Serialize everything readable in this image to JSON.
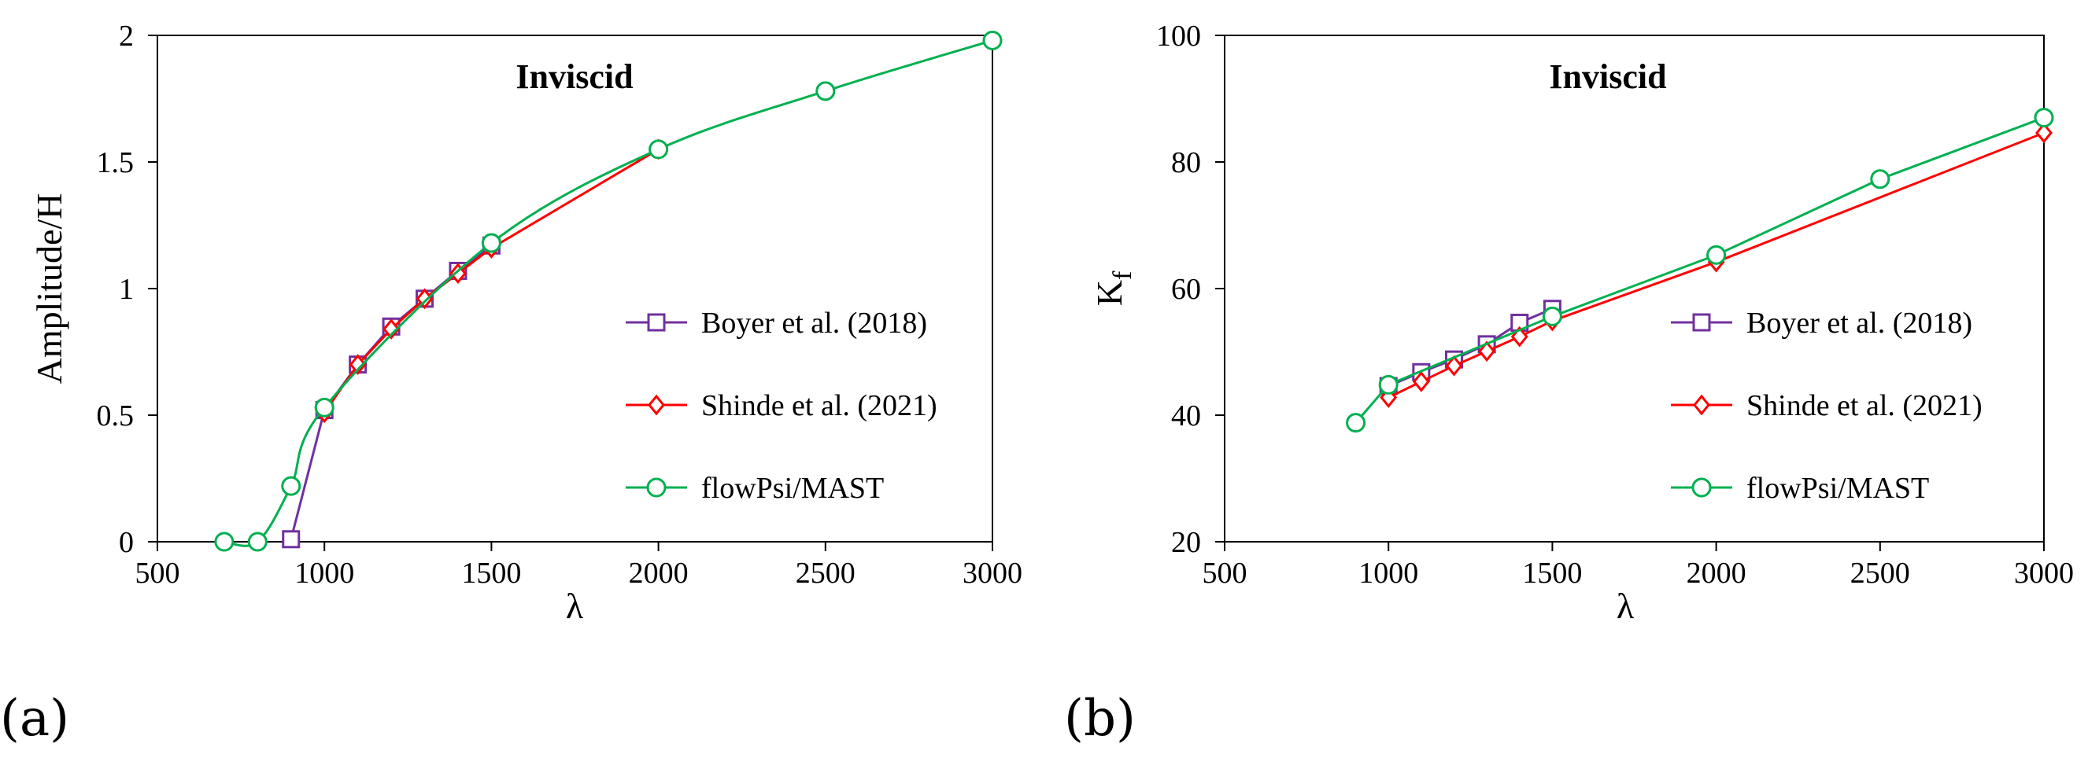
{
  "colors": {
    "boyer": "#7030A0",
    "shinde": "#FF0000",
    "flowpsi": "#00B050"
  },
  "chart_data": [
    {
      "type": "line",
      "panel_label": "(a)",
      "title": "Inviscid",
      "xlabel": "λ",
      "ylabel": "Amplitude/H",
      "xlim": [
        500,
        3000
      ],
      "ylim": [
        0,
        2
      ],
      "xticks": [
        "500",
        "1000",
        "1500",
        "2000",
        "2500",
        "3000"
      ],
      "yticks": [
        "0",
        "0.5",
        "1",
        "1.5",
        "2"
      ],
      "legend_position": "center-right",
      "series": [
        {
          "name": "Boyer et al. (2018)",
          "marker": "square",
          "curve": "linear",
          "x": [
            900,
            1000,
            1100,
            1200,
            1300,
            1400,
            1500
          ],
          "y": [
            0.01,
            0.52,
            0.7,
            0.85,
            0.96,
            1.07,
            1.17
          ]
        },
        {
          "name": "Shinde et al. (2021)",
          "marker": "diamond",
          "curve": "linear",
          "x": [
            1000,
            1100,
            1200,
            1300,
            1400,
            1500,
            2000
          ],
          "y": [
            0.51,
            0.7,
            0.84,
            0.96,
            1.06,
            1.16,
            1.55
          ]
        },
        {
          "name": "flowPsi/MAST",
          "marker": "circle",
          "curve": "smooth",
          "x": [
            700,
            800,
            900,
            1000,
            1500,
            2000,
            2500,
            3000
          ],
          "y": [
            0.0,
            0.0,
            0.22,
            0.53,
            1.18,
            1.55,
            1.78,
            1.98
          ]
        }
      ]
    },
    {
      "type": "line",
      "panel_label": "(b)",
      "title": "Inviscid",
      "xlabel": "λ",
      "ylabel_main": "K",
      "ylabel_sub": "f",
      "xlim": [
        500,
        3000
      ],
      "ylim": [
        20,
        100
      ],
      "xticks": [
        "500",
        "1000",
        "1500",
        "2000",
        "2500",
        "3000"
      ],
      "yticks": [
        "20",
        "40",
        "60",
        "80",
        "100"
      ],
      "legend_position": "center-right",
      "series": [
        {
          "name": "Boyer et al. (2018)",
          "marker": "square",
          "curve": "linear",
          "x": [
            1000,
            1100,
            1200,
            1300,
            1400,
            1500
          ],
          "y": [
            44.6,
            46.8,
            48.8,
            51.2,
            54.6,
            56.8
          ]
        },
        {
          "name": "Shinde et al. (2021)",
          "marker": "diamond",
          "curve": "linear",
          "x": [
            1000,
            1100,
            1200,
            1300,
            1400,
            1500,
            2000,
            3000
          ],
          "y": [
            42.8,
            45.3,
            47.8,
            50.1,
            52.4,
            54.9,
            64.2,
            84.6
          ]
        },
        {
          "name": "flowPsi/MAST",
          "marker": "circle",
          "curve": "linear",
          "x": [
            900,
            1000,
            1500,
            2000,
            2500,
            3000
          ],
          "y": [
            38.8,
            44.8,
            55.6,
            65.3,
            77.3,
            87.0
          ]
        }
      ]
    }
  ]
}
